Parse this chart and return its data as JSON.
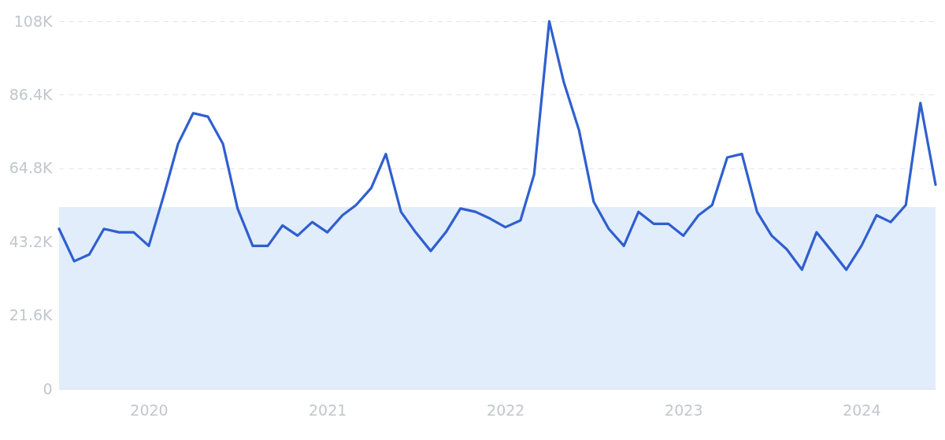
{
  "chart_data": {
    "type": "line",
    "x": [
      "2019-07",
      "2019-08",
      "2019-09",
      "2019-10",
      "2019-11",
      "2019-12",
      "2020-01",
      "2020-02",
      "2020-03",
      "2020-04",
      "2020-05",
      "2020-06",
      "2020-07",
      "2020-08",
      "2020-09",
      "2020-10",
      "2020-11",
      "2020-12",
      "2021-01",
      "2021-02",
      "2021-03",
      "2021-04",
      "2021-05",
      "2021-06",
      "2021-07",
      "2021-08",
      "2021-09",
      "2021-10",
      "2021-11",
      "2021-12",
      "2022-01",
      "2022-02",
      "2022-03",
      "2022-04",
      "2022-05",
      "2022-06",
      "2022-07",
      "2022-08",
      "2022-09",
      "2022-10",
      "2022-11",
      "2022-12",
      "2023-01",
      "2023-02",
      "2023-03",
      "2023-04",
      "2023-05",
      "2023-06",
      "2023-07",
      "2023-08",
      "2023-09",
      "2023-10",
      "2023-11",
      "2023-12",
      "2024-01",
      "2024-02",
      "2024-03",
      "2024-04",
      "2024-05",
      "2024-06"
    ],
    "series": [
      {
        "color": "#2f5fd0",
        "values": [
          47000,
          37500,
          39500,
          47000,
          46000,
          46000,
          42000,
          57000,
          72000,
          81000,
          80000,
          72000,
          53000,
          42000,
          42000,
          48000,
          45000,
          49000,
          46000,
          51000,
          54000,
          59000,
          69000,
          52000,
          46000,
          40500,
          46000,
          53000,
          52000,
          50000,
          47500,
          49500,
          63000,
          108000,
          90000,
          76000,
          55000,
          47000,
          42000,
          52000,
          48500,
          48500,
          45000,
          51000,
          54000,
          68000,
          69000,
          52000,
          45000,
          41000,
          35000,
          46000,
          40500,
          35000,
          42000,
          51000,
          49000,
          54000,
          84000,
          60000
        ]
      }
    ],
    "xlim": [
      "2019-07",
      "2024-06"
    ],
    "xticks": [
      {
        "value": "2020-01",
        "label": "2020"
      },
      {
        "value": "2021-01",
        "label": "2021"
      },
      {
        "value": "2022-01",
        "label": "2022"
      },
      {
        "value": "2023-01",
        "label": "2023"
      },
      {
        "value": "2024-01",
        "label": "2024"
      }
    ],
    "ylim": [
      0,
      108000
    ],
    "yticks": [
      0,
      {
        "value": 21600,
        "label": "21.6K"
      },
      {
        "value": 43200,
        "label": "43.2K"
      },
      {
        "value": 64800,
        "label": "64.8K"
      },
      {
        "value": 86400,
        "label": "86.4K"
      },
      {
        "value": 108000,
        "label": "108K"
      }
    ],
    "bands": [
      {
        "axis": "y",
        "from": 0,
        "to": 53400,
        "color": "#e2edfb"
      }
    ],
    "grid": "y",
    "marker": "none",
    "line_style": "solid"
  }
}
